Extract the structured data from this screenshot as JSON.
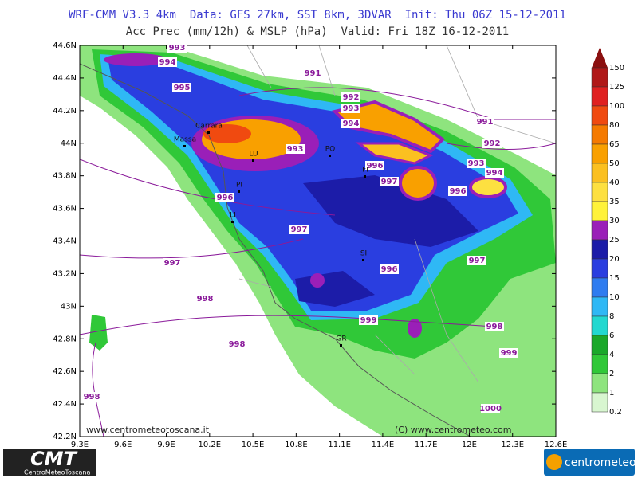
{
  "header": {
    "line1": "WRF-CMM V3.3 4km  Data: GFS 27km, SST 8km, 3DVAR  Init: Thu 06Z 15-12-2011",
    "line2": "Acc Prec (mm/12h) & MSLP (hPa)  Valid: Fri 18Z 16-12-2011"
  },
  "map": {
    "lat_labels": [
      "44.6N",
      "44.4N",
      "44.2N",
      "44N",
      "43.8N",
      "43.6N",
      "43.4N",
      "43.2N",
      "43N",
      "42.8N",
      "42.6N",
      "42.4N",
      "42.2N"
    ],
    "lon_labels": [
      "9.3E",
      "9.6E",
      "9.9E",
      "10.2E",
      "10.5E",
      "10.8E",
      "11.1E",
      "11.4E",
      "11.7E",
      "12E",
      "12.3E",
      "12.6E"
    ],
    "isobar_labels": [
      "993",
      "994",
      "995",
      "991",
      "992",
      "993",
      "994",
      "993",
      "991",
      "992",
      "993",
      "994",
      "996",
      "997",
      "996",
      "996",
      "997",
      "997",
      "996",
      "997",
      "998",
      "999",
      "998",
      "999",
      "998",
      "998",
      "1000"
    ],
    "cities": [
      "LU",
      "PI",
      "LI",
      "FI",
      "PO",
      "SI",
      "GR",
      "Carrara",
      "Massa"
    ],
    "watermark_left": "www.centrometeotoscana.it",
    "watermark_right": "(C) www.centrometeo.com"
  },
  "legend": {
    "labels": [
      "150",
      "125",
      "100",
      "80",
      "65",
      "50",
      "40",
      "35",
      "30",
      "25",
      "20",
      "15",
      "10",
      "8",
      "6",
      "4",
      "2",
      "1",
      "0.2"
    ],
    "colors": [
      "#8b1010",
      "#b01818",
      "#e02020",
      "#f04a10",
      "#f57a00",
      "#f9a000",
      "#fbc020",
      "#fde040",
      "#fff23a",
      "#9a1fb8",
      "#1c1ca8",
      "#2a3ee0",
      "#2f7cf0",
      "#2fb8f5",
      "#22d8d0",
      "#1aa82a",
      "#30c838",
      "#8ee47e",
      "#d8f6d0"
    ]
  },
  "logos": {
    "left_title": "CMT",
    "left_subtitle": "CentroMeteoToscana",
    "right": "centrometeo"
  }
}
